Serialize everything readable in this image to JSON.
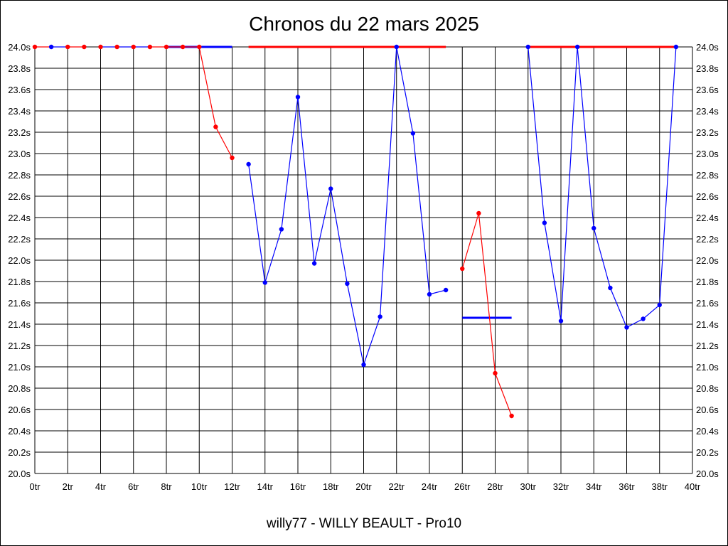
{
  "chart_data": {
    "type": "line",
    "title": "Chronos du 22 mars 2025",
    "footer": "willy77 - WILLY BEAULT - Pro10",
    "x_range": [
      0,
      40
    ],
    "y_range": [
      20.0,
      24.0
    ],
    "x_ticks": [
      "0tr",
      "2tr",
      "4tr",
      "6tr",
      "8tr",
      "10tr",
      "12tr",
      "14tr",
      "16tr",
      "18tr",
      "20tr",
      "22tr",
      "24tr",
      "26tr",
      "28tr",
      "30tr",
      "32tr",
      "34tr",
      "36tr",
      "38tr",
      "40tr"
    ],
    "y_ticks": [
      "24.0s",
      "23.8s",
      "23.6s",
      "23.4s",
      "23.2s",
      "23.0s",
      "22.8s",
      "22.6s",
      "22.4s",
      "22.2s",
      "22.0s",
      "21.8s",
      "21.6s",
      "21.4s",
      "21.2s",
      "21.0s",
      "20.8s",
      "20.6s",
      "20.4s",
      "20.2s",
      "20.0s"
    ],
    "grid": true,
    "colors": {
      "red": "#ff0000",
      "blue": "#0000ff"
    },
    "segments": [
      {
        "color": "red",
        "points": [
          [
            0,
            24.0
          ],
          [
            1,
            24.0
          ]
        ]
      },
      {
        "color": "blue",
        "points": [
          [
            1,
            24.0
          ],
          [
            2,
            24.0
          ]
        ]
      },
      {
        "color": "red",
        "points": [
          [
            2,
            24.0
          ],
          [
            3,
            24.0
          ]
        ]
      },
      {
        "color": "blue",
        "points": [
          [
            4,
            24.0
          ],
          [
            5,
            24.0
          ],
          [
            6,
            24.0
          ],
          [
            7,
            24.0
          ]
        ]
      },
      {
        "color": "red",
        "points": [
          [
            7,
            24.0
          ],
          [
            8,
            24.0
          ],
          [
            9,
            24.0
          ],
          [
            10,
            24.0
          ],
          [
            11,
            23.25
          ],
          [
            12,
            22.96
          ]
        ]
      },
      {
        "color": "blue",
        "points": [
          [
            13,
            22.9
          ],
          [
            14,
            21.79
          ],
          [
            15,
            22.29
          ],
          [
            16,
            23.53
          ],
          [
            17,
            21.97
          ],
          [
            18,
            22.67
          ],
          [
            19,
            21.78
          ],
          [
            20,
            21.02
          ],
          [
            21,
            21.47
          ],
          [
            22,
            24.0
          ],
          [
            23,
            23.19
          ],
          [
            24,
            21.68
          ],
          [
            25,
            21.72
          ]
        ]
      },
      {
        "color": "red",
        "points": [
          [
            26,
            21.92
          ],
          [
            27,
            22.44
          ],
          [
            28,
            20.94
          ],
          [
            29,
            20.54
          ]
        ]
      },
      {
        "color": "blue",
        "points": [
          [
            30,
            24.0
          ],
          [
            31,
            22.35
          ],
          [
            32,
            21.43
          ],
          [
            33,
            24.0
          ],
          [
            34,
            22.3
          ],
          [
            35,
            21.74
          ],
          [
            36,
            21.37
          ],
          [
            37,
            21.45
          ],
          [
            38,
            21.58
          ],
          [
            39,
            24.0
          ]
        ]
      }
    ],
    "reference_lines": [
      {
        "color": "blue",
        "x": [
          8,
          12
        ],
        "y": 24.0
      },
      {
        "color": "red",
        "x": [
          13,
          25
        ],
        "y": 24.0
      },
      {
        "color": "blue",
        "x": [
          26,
          29
        ],
        "y": 21.46
      },
      {
        "color": "red",
        "x": [
          30,
          39
        ],
        "y": 24.0
      }
    ],
    "markers": [
      {
        "color": "red",
        "x": [
          0,
          2,
          3,
          4,
          5,
          6,
          7,
          8,
          9,
          10,
          11,
          12,
          26,
          27,
          28,
          29
        ]
      },
      {
        "color": "blue",
        "x": [
          1,
          13,
          14,
          15,
          16,
          17,
          18,
          19,
          20,
          21,
          22,
          23,
          24,
          25,
          30,
          31,
          32,
          33,
          34,
          35,
          36,
          37,
          38,
          39
        ]
      }
    ]
  }
}
